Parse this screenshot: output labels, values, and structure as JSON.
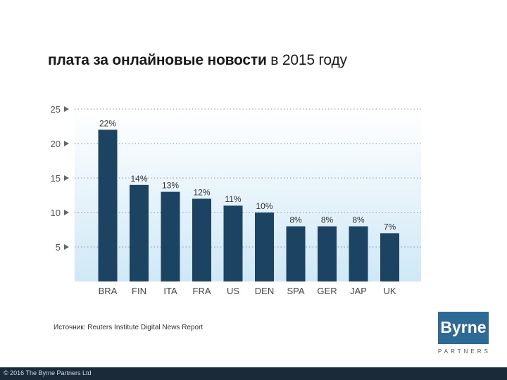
{
  "title": {
    "bold": "плата за онлайновые новости",
    "light": "в 2015 году"
  },
  "chart_data": {
    "type": "bar",
    "categories": [
      "BRA",
      "FIN",
      "ITA",
      "FRA",
      "US",
      "DEN",
      "SPA",
      "GER",
      "JAP",
      "UK"
    ],
    "values": [
      22,
      14,
      13,
      12,
      11,
      10,
      8,
      8,
      8,
      7
    ],
    "data_labels": [
      "22%",
      "14%",
      "13%",
      "12%",
      "11%",
      "10%",
      "8%",
      "8%",
      "8%",
      "7%"
    ],
    "ylim": [
      0,
      25
    ],
    "yticks": [
      5,
      10,
      15,
      20,
      25
    ],
    "grid": true,
    "bar_color": "#1c4462",
    "background_top": "#ffffff",
    "background_bottom": "#cfe8f6"
  },
  "source": "Источник: Reuters Institute Digital News Report",
  "logo": {
    "name": "Byrne",
    "subtitle": "PARTNERS",
    "color": "#2e6a96"
  },
  "footer": {
    "text": "© 2016 The Byrne Partners Ltd",
    "color": "#1b2a38"
  }
}
